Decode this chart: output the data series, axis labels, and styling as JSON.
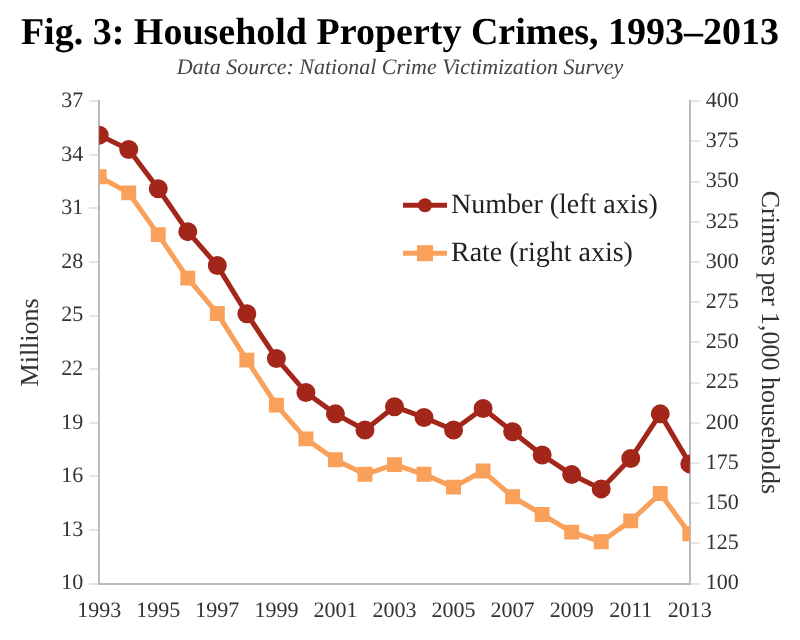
{
  "chart_data": {
    "type": "line",
    "title": "Fig. 3: Household Property Crimes, 1993–2013",
    "subtitle": "Data Source: National Crime Victimization Survey",
    "ylabel": "Millions",
    "y2label": "Crimes per 1,000 households",
    "x": [
      1993,
      1994,
      1995,
      1996,
      1997,
      1998,
      1999,
      2000,
      2001,
      2002,
      2003,
      2004,
      2005,
      2006,
      2007,
      2008,
      2009,
      2010,
      2011,
      2012,
      2013
    ],
    "series": [
      {
        "name": "Number (left axis)",
        "color": "#a3261b",
        "marker": "circle",
        "values": [
          35.1,
          34.3,
          32.1,
          29.7,
          27.8,
          25.1,
          22.6,
          20.7,
          19.5,
          18.6,
          19.9,
          19.3,
          18.6,
          19.8,
          18.5,
          17.2,
          16.1,
          15.3,
          17.0,
          19.5,
          16.7
        ]
      },
      {
        "name": "Rate (right axis)",
        "color": "#f9a05a",
        "marker": "square",
        "axis": "y2",
        "values": [
          353,
          343,
          317,
          290,
          268,
          239,
          211,
          190,
          177,
          168,
          174,
          168,
          160,
          170,
          154,
          143,
          132,
          126,
          139,
          156,
          131
        ]
      }
    ],
    "xlim": [
      1993,
      2013
    ],
    "xticks": [
      1993,
      1995,
      1997,
      1999,
      2001,
      2003,
      2005,
      2007,
      2009,
      2011,
      2013
    ],
    "ylim": [
      10,
      37
    ],
    "yticks": [
      10,
      13,
      16,
      19,
      22,
      25,
      28,
      31,
      34,
      37
    ],
    "y2lim": [
      100,
      400
    ],
    "y2ticks": [
      100,
      125,
      150,
      175,
      200,
      225,
      250,
      275,
      300,
      325,
      350,
      375,
      400
    ],
    "grid": false,
    "legend": "top right"
  }
}
